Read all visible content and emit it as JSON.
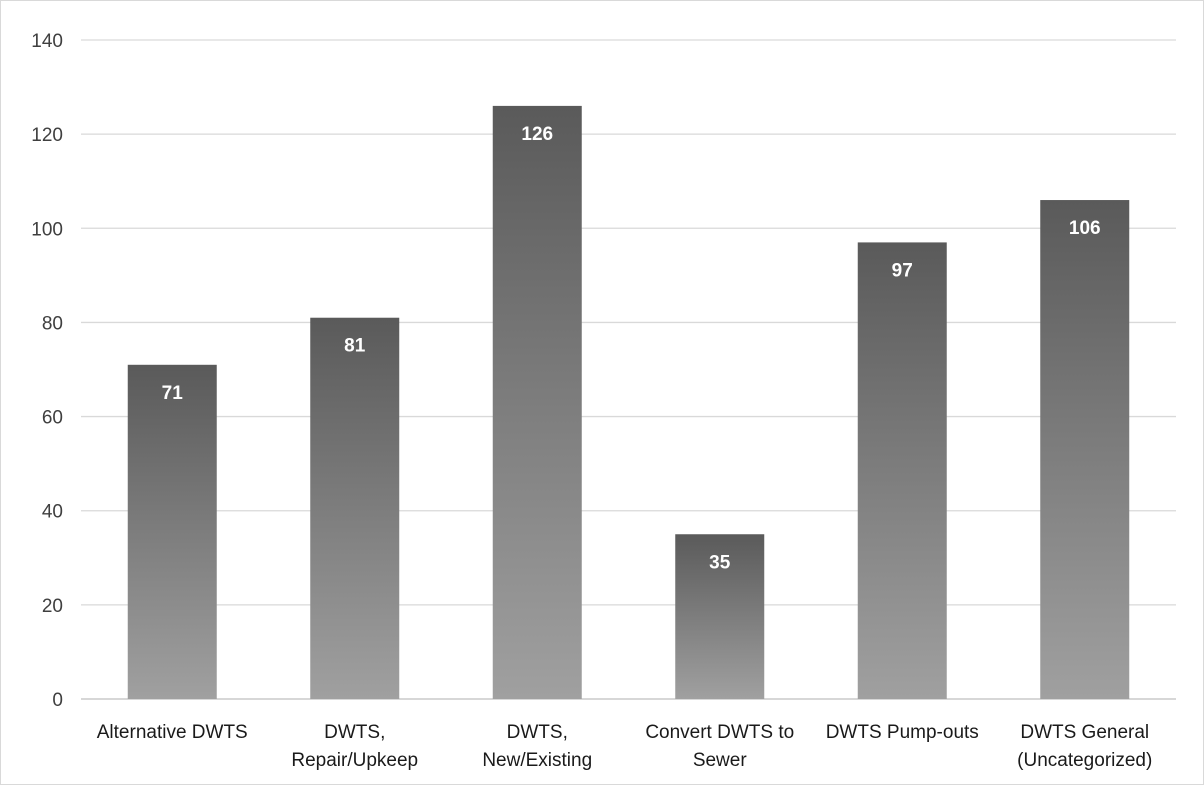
{
  "chart_data": {
    "type": "bar",
    "title": "",
    "xlabel": "",
    "ylabel": "",
    "categories": [
      [
        "Alternative DWTS"
      ],
      [
        "DWTS,",
        "Repair/Upkeep"
      ],
      [
        "DWTS,",
        "New/Existing"
      ],
      [
        "Convert DWTS to",
        "Sewer"
      ],
      [
        "DWTS Pump-outs"
      ],
      [
        "DWTS General",
        "(Uncategorized)"
      ]
    ],
    "values": [
      71,
      81,
      126,
      35,
      97,
      106
    ],
    "data_labels": [
      "71",
      "81",
      "126",
      "35",
      "97",
      "106"
    ],
    "ylim": [
      0,
      140
    ],
    "yticks": [
      0,
      20,
      40,
      60,
      80,
      100,
      120,
      140
    ],
    "grid": true,
    "legend": "none",
    "colors": {
      "bar_top": "#5a5a5a",
      "bar_bottom": "#a0a0a0",
      "grid": "#d9d9d9",
      "axis": "#bfbfbf",
      "data_label": "#ffffff"
    }
  }
}
